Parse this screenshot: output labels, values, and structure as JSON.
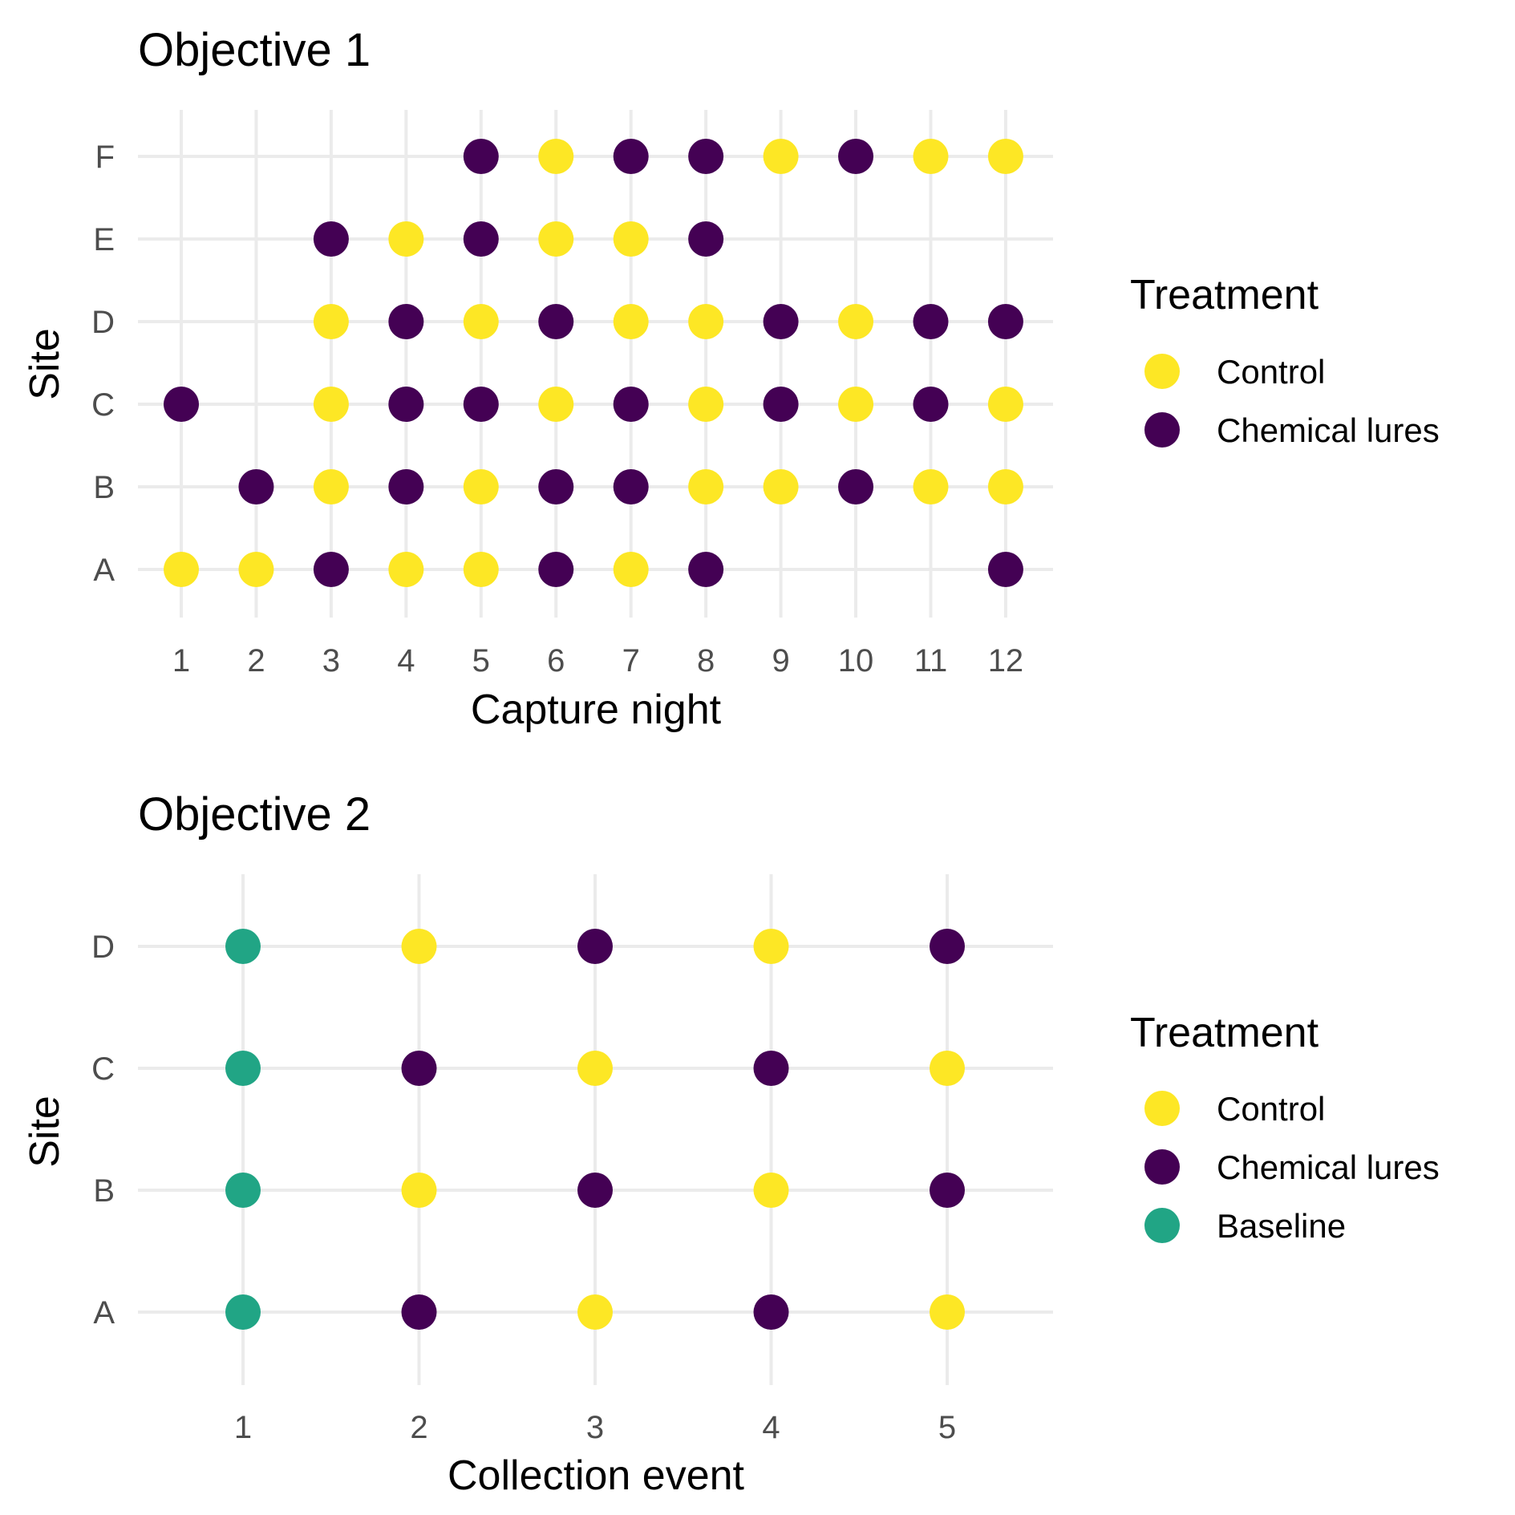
{
  "chart_data": [
    {
      "type": "scatter",
      "title": "Objective 1",
      "xlabel": "Capture night",
      "ylabel": "Site",
      "x_ticks": [
        "1",
        "2",
        "3",
        "4",
        "5",
        "6",
        "7",
        "8",
        "9",
        "10",
        "11",
        "12"
      ],
      "y_categories": [
        "A",
        "B",
        "C",
        "D",
        "E",
        "F"
      ],
      "grid": true,
      "legend": {
        "title": "Treatment",
        "placement": "right",
        "entries": [
          {
            "label": "Control",
            "color": "#FDE725"
          },
          {
            "label": "Chemical lures",
            "color": "#440154"
          }
        ]
      },
      "series": [
        {
          "name": "Control",
          "color": "#FDE725",
          "points": [
            {
              "x": 1,
              "y": "A"
            },
            {
              "x": 2,
              "y": "A"
            },
            {
              "x": 4,
              "y": "A"
            },
            {
              "x": 5,
              "y": "A"
            },
            {
              "x": 7,
              "y": "A"
            },
            {
              "x": 3,
              "y": "B"
            },
            {
              "x": 5,
              "y": "B"
            },
            {
              "x": 8,
              "y": "B"
            },
            {
              "x": 9,
              "y": "B"
            },
            {
              "x": 11,
              "y": "B"
            },
            {
              "x": 12,
              "y": "B"
            },
            {
              "x": 3,
              "y": "C"
            },
            {
              "x": 6,
              "y": "C"
            },
            {
              "x": 8,
              "y": "C"
            },
            {
              "x": 10,
              "y": "C"
            },
            {
              "x": 12,
              "y": "C"
            },
            {
              "x": 3,
              "y": "D"
            },
            {
              "x": 5,
              "y": "D"
            },
            {
              "x": 7,
              "y": "D"
            },
            {
              "x": 8,
              "y": "D"
            },
            {
              "x": 10,
              "y": "D"
            },
            {
              "x": 4,
              "y": "E"
            },
            {
              "x": 6,
              "y": "E"
            },
            {
              "x": 7,
              "y": "E"
            },
            {
              "x": 6,
              "y": "F"
            },
            {
              "x": 9,
              "y": "F"
            },
            {
              "x": 11,
              "y": "F"
            },
            {
              "x": 12,
              "y": "F"
            }
          ]
        },
        {
          "name": "Chemical lures",
          "color": "#440154",
          "points": [
            {
              "x": 3,
              "y": "A"
            },
            {
              "x": 6,
              "y": "A"
            },
            {
              "x": 8,
              "y": "A"
            },
            {
              "x": 12,
              "y": "A"
            },
            {
              "x": 2,
              "y": "B"
            },
            {
              "x": 4,
              "y": "B"
            },
            {
              "x": 6,
              "y": "B"
            },
            {
              "x": 7,
              "y": "B"
            },
            {
              "x": 10,
              "y": "B"
            },
            {
              "x": 1,
              "y": "C"
            },
            {
              "x": 4,
              "y": "C"
            },
            {
              "x": 5,
              "y": "C"
            },
            {
              "x": 7,
              "y": "C"
            },
            {
              "x": 9,
              "y": "C"
            },
            {
              "x": 11,
              "y": "C"
            },
            {
              "x": 4,
              "y": "D"
            },
            {
              "x": 6,
              "y": "D"
            },
            {
              "x": 9,
              "y": "D"
            },
            {
              "x": 11,
              "y": "D"
            },
            {
              "x": 12,
              "y": "D"
            },
            {
              "x": 3,
              "y": "E"
            },
            {
              "x": 5,
              "y": "E"
            },
            {
              "x": 8,
              "y": "E"
            },
            {
              "x": 5,
              "y": "F"
            },
            {
              "x": 7,
              "y": "F"
            },
            {
              "x": 8,
              "y": "F"
            },
            {
              "x": 10,
              "y": "F"
            }
          ]
        }
      ]
    },
    {
      "type": "scatter",
      "title": "Objective 2",
      "xlabel": "Collection event",
      "ylabel": "Site",
      "x_ticks": [
        "1",
        "2",
        "3",
        "4",
        "5"
      ],
      "y_categories": [
        "A",
        "B",
        "C",
        "D"
      ],
      "grid": true,
      "legend": {
        "title": "Treatment",
        "placement": "right",
        "entries": [
          {
            "label": "Control",
            "color": "#FDE725"
          },
          {
            "label": "Chemical lures",
            "color": "#440154"
          },
          {
            "label": "Baseline",
            "color": "#21A585"
          }
        ]
      },
      "series": [
        {
          "name": "Control",
          "color": "#FDE725",
          "points": [
            {
              "x": 3,
              "y": "A"
            },
            {
              "x": 5,
              "y": "A"
            },
            {
              "x": 2,
              "y": "B"
            },
            {
              "x": 4,
              "y": "B"
            },
            {
              "x": 3,
              "y": "C"
            },
            {
              "x": 5,
              "y": "C"
            },
            {
              "x": 2,
              "y": "D"
            },
            {
              "x": 4,
              "y": "D"
            }
          ]
        },
        {
          "name": "Chemical lures",
          "color": "#440154",
          "points": [
            {
              "x": 2,
              "y": "A"
            },
            {
              "x": 4,
              "y": "A"
            },
            {
              "x": 3,
              "y": "B"
            },
            {
              "x": 5,
              "y": "B"
            },
            {
              "x": 2,
              "y": "C"
            },
            {
              "x": 4,
              "y": "C"
            },
            {
              "x": 3,
              "y": "D"
            },
            {
              "x": 5,
              "y": "D"
            }
          ]
        },
        {
          "name": "Baseline",
          "color": "#21A585",
          "points": [
            {
              "x": 1,
              "y": "A"
            },
            {
              "x": 1,
              "y": "B"
            },
            {
              "x": 1,
              "y": "C"
            },
            {
              "x": 1,
              "y": "D"
            }
          ]
        }
      ]
    }
  ]
}
